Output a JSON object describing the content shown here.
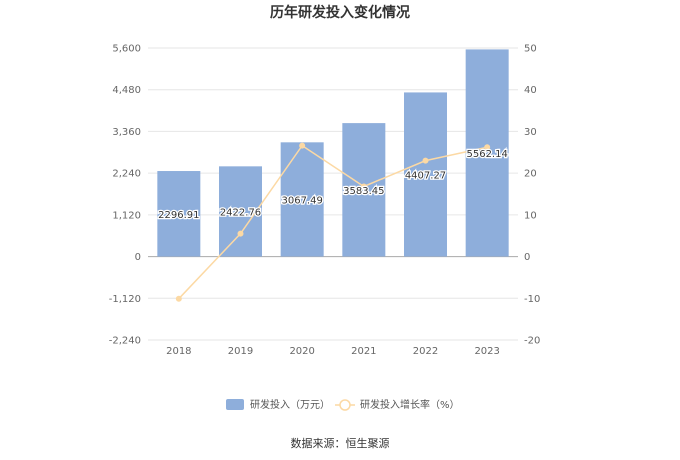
{
  "chart_data": {
    "type": "bar",
    "title": "历年研发投入变化情况",
    "categories": [
      "2018",
      "2019",
      "2020",
      "2021",
      "2022",
      "2023"
    ],
    "series": [
      {
        "name": "研发投入（万元）",
        "type": "bar",
        "axis": "left",
        "values": [
          2296.91,
          2422.76,
          3067.49,
          3583.45,
          4407.27,
          5562.14
        ],
        "labels": [
          "2296.91",
          "2422.76",
          "3067.49",
          "3583.45",
          "4407.27",
          "5562.14"
        ]
      },
      {
        "name": "研发投入增长率（%）",
        "type": "line",
        "axis": "right",
        "values": [
          -10.1,
          5.5,
          26.6,
          16.8,
          23.0,
          26.2
        ]
      }
    ],
    "y_left": {
      "min": -2240,
      "max": 5600,
      "ticks": [
        "5,600",
        "4,480",
        "3,360",
        "2,240",
        "1,120",
        "0",
        "-1,120",
        "-2,240"
      ]
    },
    "y_right": {
      "min": -20,
      "max": 50,
      "ticks": [
        "50",
        "40",
        "30",
        "20",
        "10",
        "0",
        "-10",
        "-20"
      ]
    },
    "grid": true,
    "legend": "bottom",
    "colors": {
      "bar": "#8eaedb",
      "line": "#fcd9a4",
      "grid": "#e6e6e6",
      "axis": "#cccccc"
    }
  },
  "source": "数据来源：恒生聚源"
}
